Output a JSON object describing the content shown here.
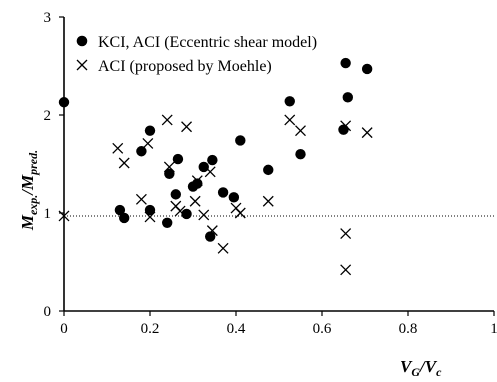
{
  "chart_data": {
    "type": "scatter",
    "xlim": [
      0,
      1
    ],
    "ylim": [
      0,
      3
    ],
    "x_ticks": [
      "0",
      "0.2",
      "0.4",
      "0.6",
      "0.8",
      "1"
    ],
    "y_ticks": [
      "0",
      "1",
      "2",
      "3"
    ],
    "grid": false,
    "legend_position": "top-left",
    "reference_line": {
      "y": 0.97,
      "style": "dotted"
    },
    "xlabel": {
      "main": "V",
      "sub1": "G",
      "slash": "/V",
      "sub2": "c"
    },
    "ylabel": {
      "main": "M",
      "sub1": "exp.",
      "slash": "/M",
      "sub2": "pred."
    },
    "series": [
      {
        "name": "KCI, ACI (Eccentric shear model)",
        "marker": "circle",
        "points": [
          [
            0.0,
            2.13
          ],
          [
            0.13,
            1.03
          ],
          [
            0.14,
            0.95
          ],
          [
            0.18,
            1.63
          ],
          [
            0.2,
            1.84
          ],
          [
            0.2,
            1.03
          ],
          [
            0.24,
            0.9
          ],
          [
            0.245,
            1.4
          ],
          [
            0.26,
            1.19
          ],
          [
            0.265,
            1.55
          ],
          [
            0.285,
            0.99
          ],
          [
            0.3,
            1.27
          ],
          [
            0.31,
            1.3
          ],
          [
            0.325,
            1.47
          ],
          [
            0.34,
            0.76
          ],
          [
            0.345,
            1.54
          ],
          [
            0.37,
            1.21
          ],
          [
            0.395,
            1.16
          ],
          [
            0.41,
            1.74
          ],
          [
            0.475,
            1.44
          ],
          [
            0.525,
            2.14
          ],
          [
            0.55,
            1.6
          ],
          [
            0.65,
            1.85
          ],
          [
            0.655,
            2.53
          ],
          [
            0.66,
            2.18
          ],
          [
            0.705,
            2.47
          ]
        ]
      },
      {
        "name": "ACI (proposed by Moehle)",
        "marker": "cross",
        "points": [
          [
            0.0,
            0.97
          ],
          [
            0.125,
            1.66
          ],
          [
            0.14,
            1.51
          ],
          [
            0.18,
            1.14
          ],
          [
            0.195,
            1.71
          ],
          [
            0.2,
            0.96
          ],
          [
            0.24,
            1.95
          ],
          [
            0.245,
            1.47
          ],
          [
            0.26,
            1.07
          ],
          [
            0.27,
            1.02
          ],
          [
            0.285,
            1.88
          ],
          [
            0.305,
            1.12
          ],
          [
            0.31,
            1.33
          ],
          [
            0.325,
            0.98
          ],
          [
            0.34,
            1.42
          ],
          [
            0.345,
            0.82
          ],
          [
            0.37,
            0.64
          ],
          [
            0.4,
            1.05
          ],
          [
            0.41,
            1.0
          ],
          [
            0.475,
            1.12
          ],
          [
            0.525,
            1.95
          ],
          [
            0.55,
            1.84
          ],
          [
            0.655,
            0.79
          ],
          [
            0.655,
            1.89
          ],
          [
            0.655,
            0.42
          ],
          [
            0.705,
            1.82
          ]
        ]
      }
    ]
  }
}
